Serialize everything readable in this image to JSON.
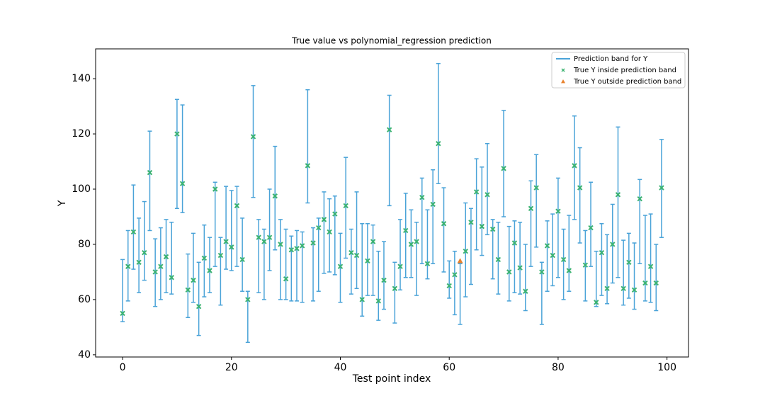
{
  "chart_data": {
    "type": "errorbar",
    "title": "True value vs polynomial_regression prediction",
    "xlabel": "Test point index",
    "ylabel": "Y",
    "xlim": [
      -4.95,
      103.95
    ],
    "ylim": [
      39.2,
      150.8
    ],
    "xticks": [
      0,
      20,
      40,
      60,
      80,
      100
    ],
    "yticks": [
      40,
      60,
      80,
      100,
      120,
      140
    ],
    "legend": "upper right",
    "grid": false,
    "series": [
      {
        "name": "Prediction band for Y",
        "color": "#4aa3d8",
        "x": [
          0,
          1,
          2,
          3,
          4,
          5,
          6,
          7,
          8,
          9,
          10,
          11,
          12,
          13,
          14,
          15,
          16,
          17,
          18,
          19,
          20,
          21,
          22,
          23,
          24,
          25,
          26,
          27,
          28,
          29,
          30,
          31,
          32,
          33,
          34,
          35,
          36,
          37,
          38,
          39,
          40,
          41,
          42,
          43,
          44,
          45,
          46,
          47,
          48,
          49,
          50,
          51,
          52,
          53,
          54,
          55,
          56,
          57,
          58,
          59,
          60,
          61,
          62,
          63,
          64,
          65,
          66,
          67,
          68,
          69,
          70,
          71,
          72,
          73,
          74,
          75,
          76,
          77,
          78,
          79,
          80,
          81,
          82,
          83,
          84,
          85,
          86,
          87,
          88,
          89,
          90,
          91,
          92,
          93,
          94,
          95,
          96,
          97,
          98,
          99
        ],
        "low": [
          52,
          59.5,
          71,
          62.5,
          67,
          85,
          57.5,
          60,
          62.5,
          62,
          93,
          91.5,
          53.5,
          59,
          47,
          61,
          62.5,
          72,
          58,
          71,
          70.5,
          72,
          63,
          44.5,
          97,
          62.5,
          60,
          70.5,
          78,
          60,
          60,
          59.5,
          59.5,
          59,
          95,
          59.5,
          63,
          69.5,
          70,
          69,
          59,
          75,
          62,
          64,
          54,
          61.5,
          61.5,
          52.5,
          56.5,
          94,
          51.5,
          63.5,
          68,
          68,
          61.5,
          73,
          67.5,
          73,
          102,
          70,
          60.5,
          54.5,
          51,
          61,
          65.5,
          78,
          76,
          83.5,
          67.5,
          62,
          90,
          59.5,
          62.5,
          62,
          56,
          72,
          79,
          51,
          63,
          65,
          68,
          60,
          63,
          89,
          80.5,
          59.5,
          72,
          57.5,
          61.5,
          58.5,
          66,
          68,
          58,
          60.5,
          56.5,
          73,
          59.5,
          59,
          56,
          82.5
        ],
        "high": [
          74.5,
          85,
          101.5,
          89.5,
          95.5,
          121,
          82,
          86,
          89,
          88,
          132.5,
          130.5,
          76.5,
          84,
          73.5,
          87,
          82.5,
          102.5,
          82.5,
          101,
          99.5,
          101,
          89.5,
          63,
          137.5,
          89,
          85.5,
          100,
          115.5,
          89,
          85.5,
          83,
          85,
          84.5,
          136,
          86,
          89.5,
          99,
          96.5,
          97.5,
          84,
          111.5,
          85.5,
          99,
          87.5,
          87.5,
          87,
          77.5,
          81,
          134,
          73.5,
          89,
          98.5,
          92.5,
          88,
          104,
          92.5,
          107,
          145.5,
          100.5,
          74,
          77.5,
          73,
          95,
          93,
          111,
          108,
          116.5,
          89,
          88,
          128.5,
          86.5,
          88.5,
          88,
          80,
          103,
          112.5,
          73.5,
          88.5,
          91,
          104,
          85.5,
          90.5,
          126.5,
          115,
          85,
          102.5,
          77.5,
          87.5,
          83.5,
          94.5,
          122.5,
          81.5,
          84,
          80.5,
          103.5,
          90.5,
          91,
          80,
          118
        ]
      },
      {
        "name": "True Y inside prediction band",
        "color": "#3cb371",
        "x": [
          0,
          1,
          2,
          3,
          4,
          5,
          6,
          7,
          8,
          9,
          10,
          11,
          12,
          13,
          14,
          15,
          16,
          17,
          18,
          19,
          20,
          21,
          22,
          23,
          24,
          25,
          26,
          27,
          28,
          29,
          30,
          31,
          32,
          33,
          34,
          35,
          36,
          37,
          38,
          39,
          40,
          41,
          42,
          43,
          44,
          45,
          46,
          47,
          48,
          49,
          50,
          51,
          52,
          53,
          54,
          55,
          56,
          57,
          58,
          59,
          60,
          61,
          63,
          64,
          65,
          66,
          67,
          68,
          69,
          70,
          71,
          72,
          73,
          74,
          75,
          76,
          77,
          78,
          79,
          80,
          81,
          82,
          83,
          84,
          85,
          86,
          87,
          88,
          89,
          90,
          91,
          92,
          93,
          94,
          95,
          96,
          97,
          98,
          99
        ],
        "values": [
          55,
          72,
          84.5,
          73.5,
          77,
          106,
          70,
          72,
          75.5,
          68,
          120,
          102,
          63.5,
          67,
          57.5,
          75,
          70.5,
          100,
          76,
          81,
          79,
          94,
          74.5,
          60,
          119,
          82.5,
          81,
          82.5,
          97.5,
          80,
          67.5,
          78,
          78.5,
          79.5,
          108.5,
          80.5,
          86,
          89,
          84.5,
          91,
          72,
          94,
          77,
          76,
          60,
          74,
          81,
          59.5,
          67,
          121.5,
          64,
          72,
          85,
          80,
          81,
          97,
          73,
          94.5,
          116.5,
          87.5,
          65,
          69,
          77.5,
          88,
          99,
          86.5,
          98,
          85.5,
          74.5,
          107.5,
          70,
          80.5,
          71.5,
          63,
          93,
          100.5,
          70,
          79.5,
          76,
          92,
          74.5,
          70.5,
          108.5,
          100.5,
          72.5,
          86,
          59,
          77,
          64,
          80,
          98,
          64,
          73.5,
          63.5,
          96.5,
          66,
          72,
          66,
          100.5
        ]
      },
      {
        "name": "True Y outside prediction band",
        "color": "#e8822e",
        "x": [
          62
        ],
        "values": [
          74
        ]
      }
    ]
  }
}
